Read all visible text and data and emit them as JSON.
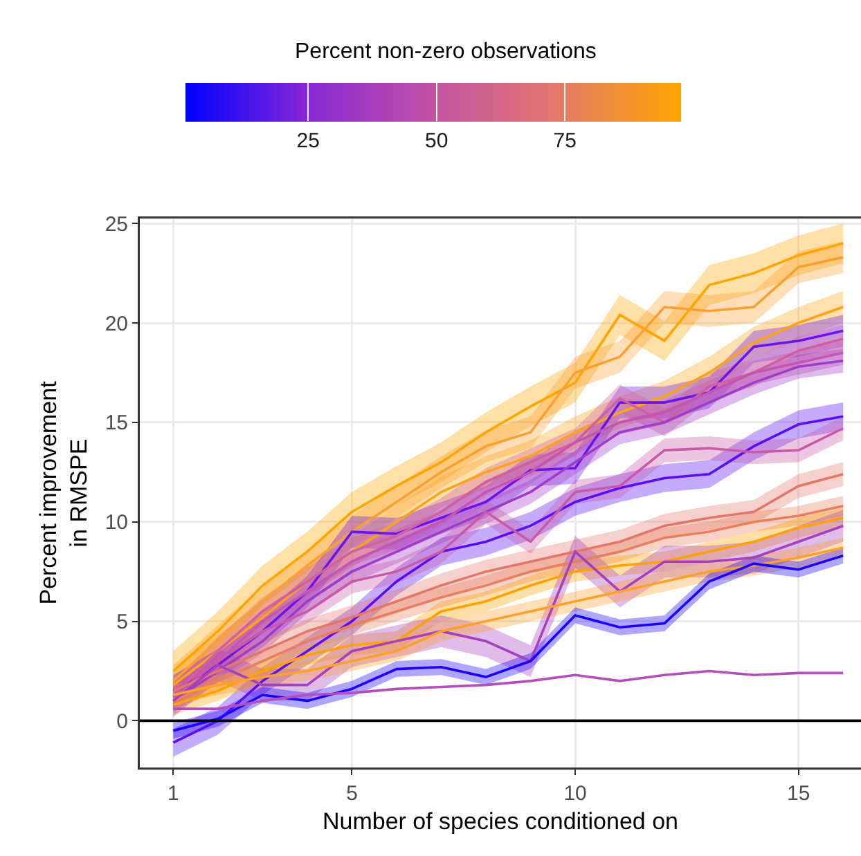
{
  "chart_data": {
    "type": "line",
    "xlabel": "Number of species conditioned on",
    "ylabel": "Percent improvement in RMSPE",
    "clabel": "Percent non-zero observations",
    "clim": [
      1,
      97.5
    ],
    "cticks": [
      25,
      50,
      75
    ],
    "x": [
      1,
      2,
      3,
      4,
      5,
      6,
      7,
      8,
      9,
      10,
      11,
      12,
      13,
      14,
      15,
      16
    ],
    "xlim": [
      0.25,
      16.4
    ],
    "xticks": [
      1,
      5,
      10,
      15
    ],
    "ylim": [
      -2.35,
      25.25
    ],
    "yticks": [
      0,
      5,
      10,
      15,
      20,
      25
    ],
    "grid": true,
    "ref_lines": [
      {
        "axis": "y",
        "value": 0,
        "color": "#000000"
      }
    ],
    "series": [
      {
        "color": "#ffa500",
        "values": [
          2.5,
          4.5,
          6.8,
          8.5,
          10.5,
          11.8,
          13.0,
          14.5,
          15.8,
          17.0,
          20.4,
          19.1,
          21.9,
          22.5,
          23.4,
          24.0
        ],
        "lower": [
          1.5,
          3.5,
          5.8,
          7.5,
          9.5,
          10.8,
          12.0,
          13.5,
          14.8,
          16.0,
          19.4,
          18.1,
          20.9,
          21.5,
          22.4,
          23.0
        ],
        "upper": [
          3.5,
          5.5,
          7.8,
          9.5,
          11.5,
          12.8,
          14.0,
          15.5,
          16.8,
          18.0,
          21.4,
          20.1,
          22.9,
          23.5,
          24.4,
          25.0
        ]
      },
      {
        "color": "#f9a030",
        "values": [
          2.0,
          4.0,
          6.0,
          7.8,
          9.5,
          11.0,
          12.5,
          13.8,
          14.5,
          17.5,
          18.3,
          20.8,
          20.6,
          20.8,
          22.8,
          23.3
        ],
        "lower": [
          1.2,
          3.2,
          5.2,
          7.0,
          8.7,
          10.2,
          11.7,
          13.0,
          13.7,
          16.7,
          17.5,
          20.0,
          19.8,
          20.0,
          22.0,
          22.5
        ],
        "upper": [
          2.8,
          4.8,
          6.8,
          8.6,
          10.3,
          11.8,
          13.3,
          14.6,
          15.3,
          18.3,
          19.1,
          21.6,
          21.4,
          21.6,
          23.6,
          24.1
        ]
      },
      {
        "color": "#fda318",
        "values": [
          1.8,
          3.5,
          5.2,
          7.0,
          8.5,
          10.0,
          11.5,
          12.5,
          13.3,
          14.5,
          15.5,
          16.3,
          17.5,
          19.0,
          20.0,
          20.8
        ],
        "lower": [
          1.0,
          2.7,
          4.4,
          6.2,
          7.7,
          9.2,
          10.7,
          11.7,
          12.5,
          13.7,
          14.7,
          15.5,
          16.7,
          18.2,
          19.2,
          20.0
        ],
        "upper": [
          2.6,
          4.3,
          6.0,
          7.8,
          9.3,
          10.8,
          12.3,
          13.3,
          14.1,
          15.3,
          16.3,
          17.1,
          18.3,
          19.8,
          20.8,
          21.6
        ]
      },
      {
        "color": "#6a14ee",
        "values": [
          1.5,
          2.8,
          4.5,
          6.5,
          9.5,
          9.4,
          10.2,
          11.0,
          12.6,
          12.7,
          16.0,
          16.0,
          16.5,
          18.8,
          19.1,
          19.6
        ],
        "lower": [
          0.7,
          2.0,
          3.7,
          5.7,
          8.7,
          8.6,
          9.4,
          10.2,
          11.8,
          11.9,
          15.2,
          15.2,
          15.7,
          18.0,
          18.3,
          18.8
        ],
        "upper": [
          2.3,
          3.6,
          5.3,
          7.3,
          10.3,
          10.2,
          11.0,
          11.8,
          13.4,
          13.5,
          16.8,
          16.8,
          17.3,
          19.6,
          19.9,
          20.4
        ]
      },
      {
        "color": "#d0609e",
        "values": [
          1.3,
          3.5,
          5.5,
          7.0,
          8.5,
          9.3,
          10.5,
          12.0,
          13.0,
          14.0,
          16.2,
          15.0,
          16.8,
          17.5,
          18.6,
          19.2
        ],
        "lower": [
          0.6,
          2.8,
          4.8,
          6.3,
          7.8,
          8.6,
          9.8,
          11.3,
          12.3,
          13.3,
          15.5,
          14.3,
          16.1,
          16.8,
          17.9,
          18.5
        ],
        "upper": [
          2.0,
          4.2,
          6.2,
          7.7,
          9.2,
          10.0,
          11.2,
          12.7,
          13.7,
          14.7,
          16.9,
          15.7,
          17.5,
          18.2,
          19.3,
          19.9
        ]
      },
      {
        "color": "#c455b0",
        "values": [
          1.2,
          3.0,
          5.0,
          6.5,
          8.0,
          9.0,
          10.0,
          11.5,
          12.5,
          14.0,
          15.0,
          15.5,
          16.5,
          17.5,
          18.0,
          18.5
        ],
        "lower": [
          0.6,
          2.4,
          4.4,
          5.9,
          7.4,
          8.4,
          9.4,
          10.9,
          11.9,
          13.4,
          14.4,
          14.9,
          15.9,
          16.9,
          17.4,
          17.9
        ],
        "upper": [
          1.8,
          3.6,
          5.6,
          7.1,
          8.6,
          9.6,
          10.6,
          12.1,
          13.1,
          14.6,
          15.6,
          16.1,
          17.1,
          18.1,
          18.6,
          19.1
        ]
      },
      {
        "color": "#a03cc8",
        "values": [
          1.0,
          2.5,
          4.0,
          6.0,
          7.5,
          8.5,
          9.5,
          10.5,
          11.5,
          13.0,
          14.5,
          15.0,
          16.0,
          17.0,
          17.8,
          18.1
        ],
        "lower": [
          0.4,
          1.9,
          3.4,
          5.4,
          6.9,
          7.9,
          8.9,
          9.9,
          10.9,
          12.4,
          13.9,
          14.4,
          15.4,
          16.4,
          17.2,
          17.5
        ],
        "upper": [
          1.6,
          3.1,
          4.6,
          6.6,
          8.1,
          9.1,
          10.1,
          11.1,
          12.1,
          13.6,
          15.1,
          15.6,
          16.6,
          17.6,
          18.4,
          18.7
        ]
      },
      {
        "color": "#5a0ef5",
        "values": [
          -1.1,
          0.0,
          2.0,
          3.5,
          5.0,
          7.0,
          8.5,
          9.0,
          9.8,
          11.0,
          11.7,
          12.2,
          12.4,
          13.8,
          14.9,
          15.3
        ],
        "lower": [
          -1.8,
          -0.7,
          1.3,
          2.8,
          4.3,
          6.3,
          7.8,
          8.3,
          9.1,
          10.3,
          11.0,
          11.5,
          11.7,
          13.1,
          14.2,
          14.6
        ],
        "upper": [
          -0.4,
          0.7,
          2.7,
          4.2,
          5.7,
          7.7,
          9.2,
          9.7,
          10.5,
          11.7,
          12.4,
          12.9,
          13.1,
          14.5,
          15.6,
          16.0
        ]
      },
      {
        "color": "#c85aa8",
        "values": [
          1.5,
          3.0,
          4.5,
          5.5,
          7.0,
          7.5,
          8.5,
          10.5,
          9.0,
          11.5,
          11.8,
          13.6,
          13.7,
          13.5,
          13.6,
          14.7
        ],
        "lower": [
          0.9,
          2.4,
          3.9,
          4.9,
          6.4,
          6.9,
          7.9,
          9.9,
          8.4,
          10.9,
          11.2,
          13.0,
          13.1,
          12.9,
          13.0,
          14.1
        ],
        "upper": [
          2.1,
          3.6,
          5.1,
          6.1,
          7.6,
          8.1,
          9.1,
          11.1,
          9.6,
          12.1,
          12.4,
          14.2,
          14.3,
          14.1,
          14.2,
          15.3
        ]
      },
      {
        "color": "#e47868",
        "values": [
          1.5,
          2.5,
          3.5,
          4.5,
          5.2,
          6.0,
          6.8,
          7.5,
          8.0,
          8.5,
          9.0,
          9.8,
          10.2,
          10.5,
          11.8,
          12.4
        ],
        "lower": [
          0.9,
          1.9,
          2.9,
          3.9,
          4.6,
          5.4,
          6.2,
          6.9,
          7.4,
          7.9,
          8.4,
          9.2,
          9.6,
          9.9,
          11.2,
          11.8
        ],
        "upper": [
          2.1,
          3.1,
          4.1,
          5.1,
          5.8,
          6.6,
          7.4,
          8.1,
          8.6,
          9.1,
          9.6,
          10.4,
          10.8,
          11.1,
          12.4,
          13.0
        ]
      },
      {
        "color": "#e8805e",
        "values": [
          1.0,
          2.0,
          3.0,
          4.0,
          4.8,
          5.5,
          6.2,
          6.8,
          7.5,
          8.0,
          8.5,
          9.2,
          9.5,
          10.0,
          10.3,
          10.8
        ],
        "lower": [
          0.5,
          1.5,
          2.5,
          3.5,
          4.3,
          5.0,
          5.7,
          6.3,
          7.0,
          7.5,
          8.0,
          8.7,
          9.0,
          9.5,
          9.8,
          10.3
        ],
        "upper": [
          1.5,
          2.5,
          3.5,
          4.5,
          5.3,
          6.0,
          6.7,
          7.3,
          8.0,
          8.5,
          9.0,
          9.7,
          10.0,
          10.5,
          10.8,
          11.3
        ]
      },
      {
        "color": "#ffa200",
        "values": [
          0.8,
          1.5,
          2.5,
          3.3,
          3.8,
          4.0,
          5.5,
          6.0,
          6.8,
          7.5,
          7.8,
          8.0,
          8.5,
          9.0,
          9.7,
          10.2
        ],
        "lower": [
          0.3,
          1.0,
          2.0,
          2.8,
          3.3,
          3.5,
          5.0,
          5.5,
          6.3,
          7.0,
          7.3,
          7.5,
          8.0,
          8.5,
          9.2,
          9.7
        ],
        "upper": [
          1.3,
          2.0,
          3.0,
          3.8,
          4.3,
          4.5,
          6.0,
          6.5,
          7.3,
          8.0,
          8.3,
          8.5,
          9.0,
          9.5,
          10.2,
          10.7
        ]
      },
      {
        "color": "#a640c0",
        "values": [
          1.0,
          2.8,
          1.8,
          1.8,
          3.5,
          4.0,
          4.5,
          4.0,
          3.0,
          8.5,
          6.5,
          8.0,
          8.0,
          8.2,
          9.0,
          9.8
        ],
        "lower": [
          0.2,
          2.0,
          1.0,
          1.0,
          2.7,
          3.2,
          3.7,
          3.2,
          2.2,
          7.7,
          5.7,
          7.2,
          7.2,
          7.4,
          8.2,
          9.0
        ],
        "upper": [
          1.8,
          3.6,
          2.6,
          2.6,
          4.3,
          4.8,
          5.3,
          4.8,
          3.8,
          9.3,
          7.3,
          8.8,
          8.8,
          9.0,
          9.8,
          10.6
        ]
      },
      {
        "color": "#fca12c",
        "values": [
          1.3,
          1.8,
          2.2,
          2.5,
          3.0,
          3.5,
          4.5,
          5.0,
          5.5,
          6.0,
          6.5,
          7.0,
          7.5,
          7.8,
          8.2,
          8.7
        ],
        "lower": [
          0.8,
          1.3,
          1.7,
          2.0,
          2.5,
          3.0,
          4.0,
          4.5,
          5.0,
          5.5,
          6.0,
          6.5,
          7.0,
          7.3,
          7.7,
          8.2
        ],
        "upper": [
          1.8,
          2.3,
          2.7,
          3.0,
          3.5,
          4.0,
          5.0,
          5.5,
          6.0,
          6.5,
          7.0,
          7.5,
          8.0,
          8.3,
          8.7,
          9.2
        ]
      },
      {
        "color": "#1a00ff",
        "values": [
          -0.5,
          0.1,
          1.3,
          1.0,
          1.6,
          2.6,
          2.7,
          2.2,
          3.0,
          5.3,
          4.7,
          4.9,
          7.0,
          7.9,
          7.6,
          8.3
        ],
        "lower": [
          -0.9,
          -0.3,
          0.9,
          0.6,
          1.2,
          2.2,
          2.3,
          1.8,
          2.6,
          4.9,
          4.3,
          4.5,
          6.6,
          7.5,
          7.2,
          7.9
        ],
        "upper": [
          -0.1,
          0.5,
          1.7,
          1.4,
          2.0,
          3.0,
          3.1,
          2.6,
          3.4,
          5.7,
          5.1,
          5.3,
          7.4,
          8.3,
          8.0,
          8.7
        ]
      },
      {
        "color": "#b44ebf",
        "values": [
          0.6,
          0.6,
          1.0,
          1.3,
          1.4,
          1.6,
          1.7,
          1.8,
          2.0,
          2.3,
          2.0,
          2.3,
          2.5,
          2.3,
          2.4,
          2.4
        ]
      }
    ]
  }
}
